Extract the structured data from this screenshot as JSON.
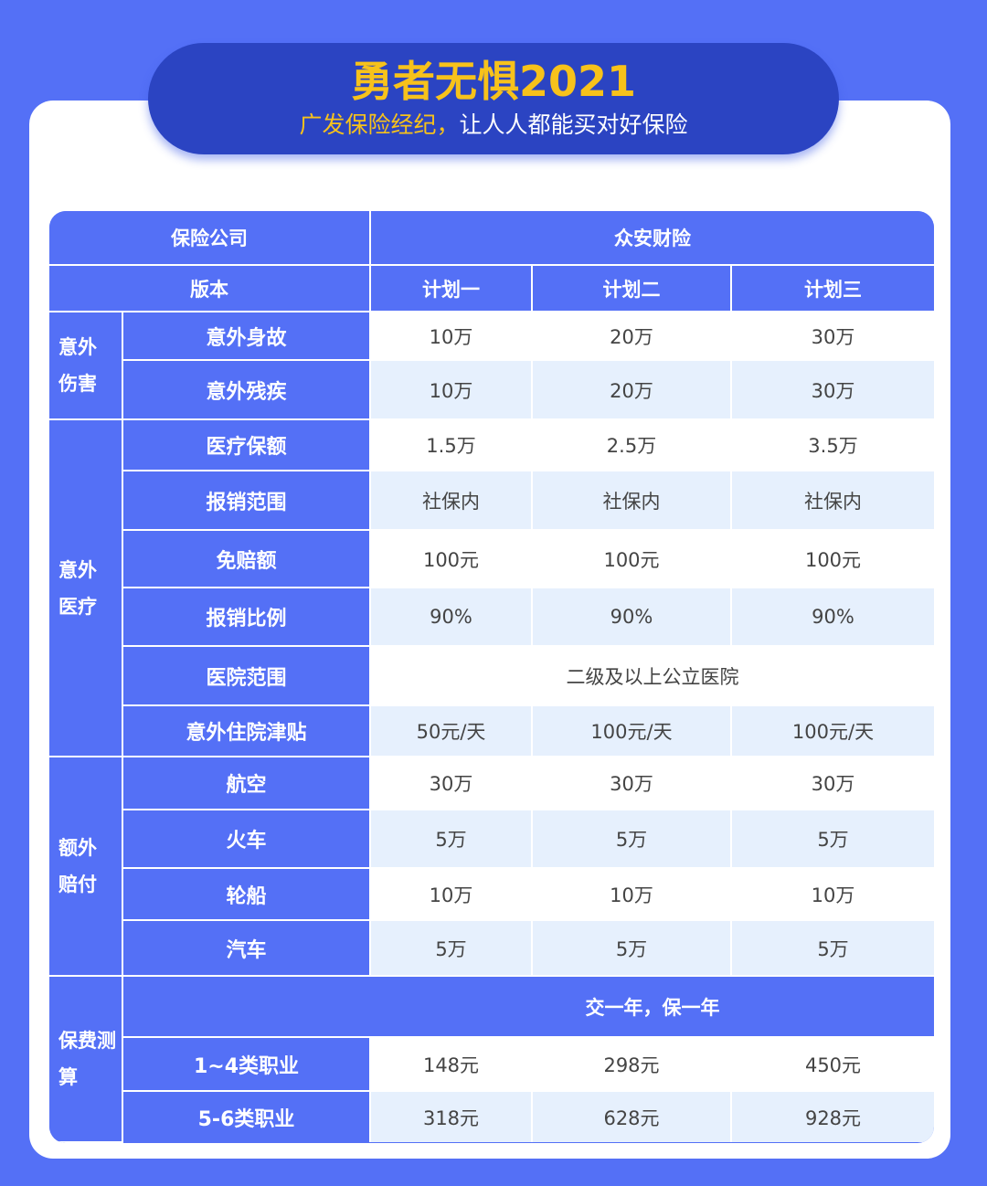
{
  "banner": {
    "title": "勇者无惧2021",
    "subtitle_highlight": "广发保险经纪，",
    "subtitle_rest": "让人人都能买对好保险"
  },
  "colors": {
    "background": "#5470f6",
    "banner": "#2b44c2",
    "accent": "#f7c21b",
    "stripe": "#e6f0fd"
  },
  "table": {
    "company_label": "保险公司",
    "company": "众安财险",
    "version_label": "版本",
    "plans": [
      "计划一",
      "计划二",
      "计划三"
    ],
    "groups": [
      {
        "category": "意外伤害",
        "rows": [
          {
            "item": "意外身故",
            "values": [
              "10万",
              "20万",
              "30万"
            ]
          },
          {
            "item": "意外残疾",
            "values": [
              "10万",
              "20万",
              "30万"
            ]
          }
        ]
      },
      {
        "category": "意外医疗",
        "rows": [
          {
            "item": "医疗保额",
            "values": [
              "1.5万",
              "2.5万",
              "3.5万"
            ]
          },
          {
            "item": "报销范围",
            "values": [
              "社保内",
              "社保内",
              "社保内"
            ]
          },
          {
            "item": "免赔额",
            "values": [
              "100元",
              "100元",
              "100元"
            ]
          },
          {
            "item": "报销比例",
            "values": [
              "90%",
              "90%",
              "90%"
            ]
          },
          {
            "item": "医院范围",
            "merged": "二级及以上公立医院"
          },
          {
            "item": "意外住院津贴",
            "values": [
              "50元/天",
              "100元/天",
              "100元/天"
            ]
          }
        ]
      },
      {
        "category": "额外赔付",
        "rows": [
          {
            "item": "航空",
            "values": [
              "30万",
              "30万",
              "30万"
            ]
          },
          {
            "item": "火车",
            "values": [
              "5万",
              "5万",
              "5万"
            ]
          },
          {
            "item": "轮船",
            "values": [
              "10万",
              "10万",
              "10万"
            ]
          },
          {
            "item": "汽车",
            "values": [
              "5万",
              "5万",
              "5万"
            ]
          }
        ]
      },
      {
        "category": "保费测算",
        "term": "交一年，保一年",
        "rows": [
          {
            "item": "1~4类职业",
            "values": [
              "148元",
              "298元",
              "450元"
            ]
          },
          {
            "item": "5-6类职业",
            "values": [
              "318元",
              "628元",
              "928元"
            ]
          }
        ]
      }
    ]
  }
}
